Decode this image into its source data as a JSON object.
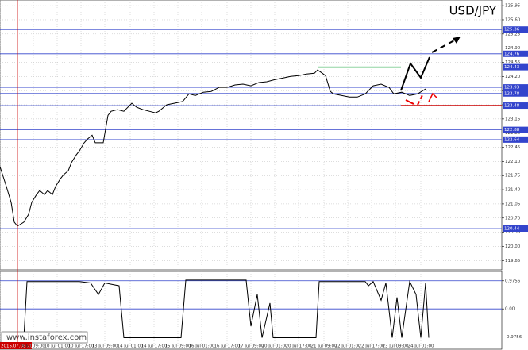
{
  "chart_data": [
    {
      "type": "line",
      "title": "USD/JPY",
      "color": "#000000",
      "x": [
        0,
        4,
        7,
        9,
        11,
        15,
        18,
        20,
        23,
        25,
        28,
        30,
        33,
        35,
        38,
        40,
        43,
        45,
        48,
        50,
        53,
        55,
        58,
        60,
        63,
        65,
        68,
        70,
        74,
        78,
        83,
        86,
        90,
        94,
        98,
        100,
        105,
        110,
        115,
        119,
        123,
        128,
        133,
        138,
        143,
        148,
        153,
        158,
        163,
        168,
        173,
        178,
        183,
        188,
        193,
        198,
        200,
        203,
        205,
        208,
        210,
        215,
        220,
        225,
        230,
        235,
        240,
        245,
        248,
        253,
        258,
        263,
        268
      ],
      "values": [
        121.97,
        121.48,
        121.09,
        120.6,
        120.5,
        120.6,
        120.79,
        121.09,
        121.28,
        121.38,
        121.28,
        121.38,
        121.28,
        121.48,
        121.67,
        121.77,
        121.87,
        122.07,
        122.26,
        122.36,
        122.56,
        122.65,
        122.75,
        122.56,
        122.56,
        122.56,
        123.24,
        123.34,
        123.38,
        123.34,
        123.54,
        123.44,
        123.38,
        123.34,
        123.3,
        123.34,
        123.5,
        123.54,
        123.58,
        123.77,
        123.73,
        123.81,
        123.83,
        123.93,
        123.93,
        123.99,
        124.01,
        123.97,
        124.05,
        124.07,
        124.12,
        124.16,
        124.2,
        124.22,
        124.26,
        124.28,
        124.36,
        124.28,
        124.22,
        123.83,
        123.77,
        123.73,
        123.69,
        123.69,
        123.77,
        123.97,
        124.01,
        123.93,
        123.77,
        123.81,
        123.73,
        123.77,
        123.89
      ],
      "levels": [
        125.36,
        124.76,
        124.43,
        123.93,
        123.78,
        123.48,
        122.88,
        122.64,
        120.44
      ],
      "xlim": [
        0,
        316
      ],
      "xticks": [
        {
          "value": 0,
          "label": "2015.07.08 20:00"
        },
        {
          "value": 21,
          "label": "9 Jul 09:00"
        },
        {
          "value": 36,
          "label": "10 Jul 01:00"
        },
        {
          "value": 51,
          "label": "10 Jul 17:00"
        },
        {
          "value": 66,
          "label": "13 Jul 09:00"
        },
        {
          "value": 82,
          "label": "14 Jul 01:00"
        },
        {
          "value": 97,
          "label": "14 Jul 17:00"
        },
        {
          "value": 112,
          "label": "15 Jul 09:00"
        },
        {
          "value": 127,
          "label": "16 Jul 01:00"
        },
        {
          "value": 143,
          "label": "16 Jul 17:00"
        },
        {
          "value": 158,
          "label": "17 Jul 09:00"
        },
        {
          "value": 173,
          "label": "20 Jul 01:00"
        },
        {
          "value": 188,
          "label": "20 Jul 17:00"
        },
        {
          "value": 204,
          "label": "21 Jul 09:00"
        },
        {
          "value": 219,
          "label": "22 Jul 01:00"
        },
        {
          "value": 234,
          "label": "22 Jul 17:00"
        },
        {
          "value": 249,
          "label": "23 Jul 09:00"
        },
        {
          "value": 265,
          "label": "24 Jul 01:00"
        }
      ],
      "ylim": [
        119.42,
        126.09
      ],
      "yticks": [
        119.65,
        {
          "value": 120,
          "label": "120.00"
        },
        120.35,
        {
          "value": 120.7,
          "label": "120.70"
        },
        121.05,
        {
          "value": 121.4,
          "label": "121.40"
        },
        121.75,
        {
          "value": 122.1,
          "label": "122.10"
        },
        122.45,
        {
          "value": 122.8,
          "label": "122.80"
        },
        123.15,
        {
          "value": 123.5,
          "label": "123.50"
        },
        123.85,
        {
          "value": 124.2,
          "label": "124.20"
        },
        124.55,
        {
          "value": 124.9,
          "label": "124.90"
        },
        125.25,
        {
          "value": 125.6,
          "label": "125.60"
        },
        125.95
      ],
      "grid": true
    },
    {
      "type": "line",
      "color": "#000000",
      "x": [
        15,
        17,
        50,
        57,
        62,
        66,
        75,
        78,
        114,
        117,
        155,
        158,
        162,
        165,
        170,
        172,
        199,
        201,
        230,
        232,
        235,
        240,
        243,
        247,
        250,
        253,
        258,
        262,
        265,
        268,
        270
      ],
      "values": [
        -1,
        0.95,
        0.95,
        0.9,
        0.5,
        0.9,
        0.8,
        -1,
        -1,
        1,
        1,
        -0.6,
        0.5,
        -1,
        0.2,
        -1,
        -1,
        0.95,
        0.95,
        0.8,
        0.95,
        0.3,
        0.9,
        -1,
        0.4,
        -1,
        0.95,
        0.5,
        -1,
        0.9,
        -1
      ],
      "xlim": [
        0,
        316
      ],
      "ylim": [
        -1.4,
        1.3
      ],
      "yticks": [
        0.9756,
        {
          "value": 0,
          "label": "0.00"
        },
        -0.9756
      ],
      "grid": true
    }
  ],
  "watermark": "www.instaforex.com"
}
